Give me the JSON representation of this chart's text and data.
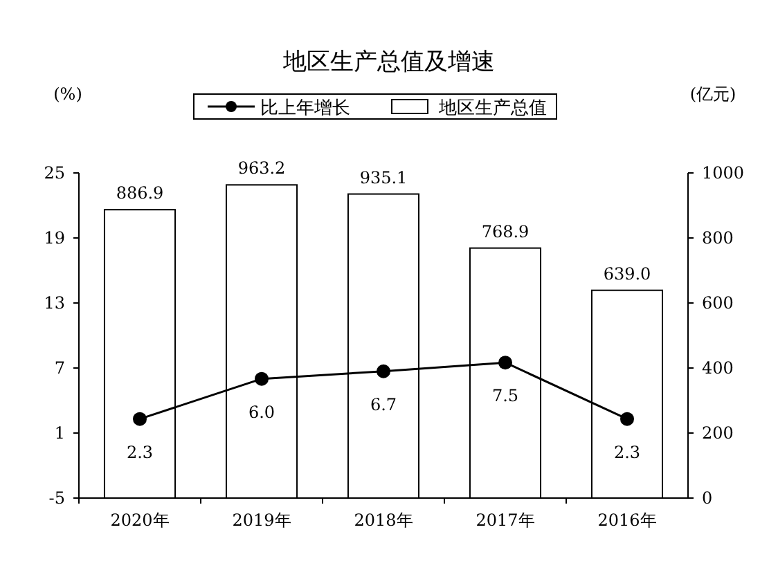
{
  "chart_data": {
    "type": "bar",
    "title": "地区生产总值及增速",
    "ylabel": "(%)",
    "y2label": "(亿元)",
    "categories": [
      "2020年",
      "2019年",
      "2018年",
      "2017年",
      "2016年"
    ],
    "series": [
      {
        "name": "比上年增长",
        "type": "line",
        "color": "#000000",
        "values": [
          2.3,
          6.0,
          6.7,
          7.5,
          2.3
        ],
        "value_labels": [
          "2.3",
          "6.0",
          "6.7",
          "7.5",
          "2.3"
        ]
      },
      {
        "name": "地区生产总值",
        "axis": "y2",
        "color": "#ffffff",
        "values": [
          886.9,
          963.2,
          935.1,
          768.9,
          639.0
        ],
        "value_labels": [
          "886.9",
          "963.2",
          "935.1",
          "768.9",
          "639.0"
        ]
      }
    ],
    "ylim": [
      -5,
      25
    ],
    "yticks": [
      -5,
      1,
      7,
      13,
      19,
      25
    ],
    "y2lim": [
      0,
      1000
    ],
    "y2ticks": [
      0,
      200,
      400,
      600,
      800,
      1000
    ],
    "marker": "circle",
    "line_style": "solid",
    "grid": false,
    "legend": "top"
  }
}
